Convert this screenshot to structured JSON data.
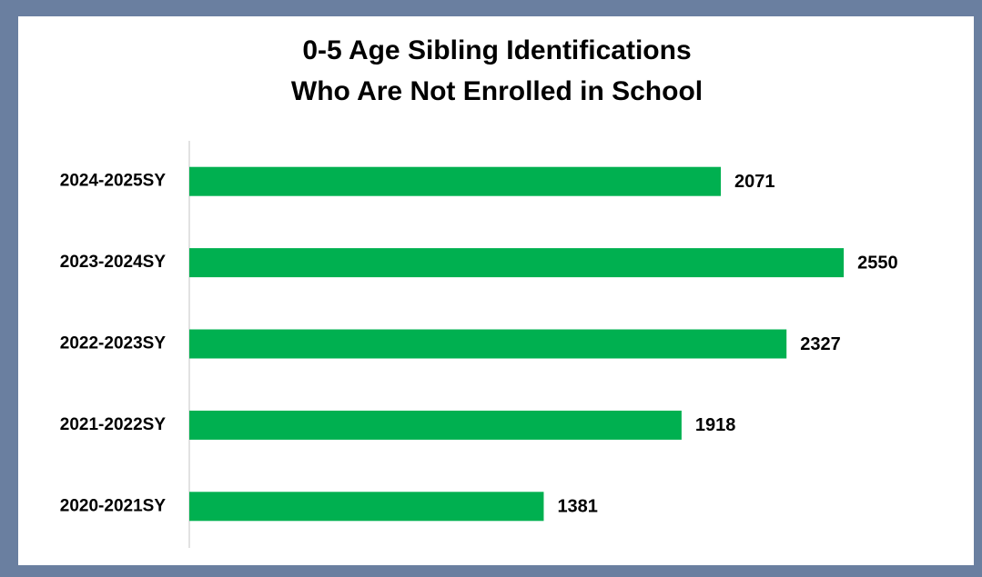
{
  "chart_data": {
    "type": "bar",
    "orientation": "horizontal",
    "title": [
      "0-5 Age Sibling Identifications",
      "Who Are Not Enrolled in School"
    ],
    "categories": [
      "2024-2025SY",
      "2023-2024SY",
      "2022-2023SY",
      "2021-2022SY",
      "2020-2021SY"
    ],
    "values": [
      2071,
      2550,
      2327,
      1918,
      1381
    ],
    "color": "#00b050",
    "xlim": [
      0,
      3000
    ]
  }
}
